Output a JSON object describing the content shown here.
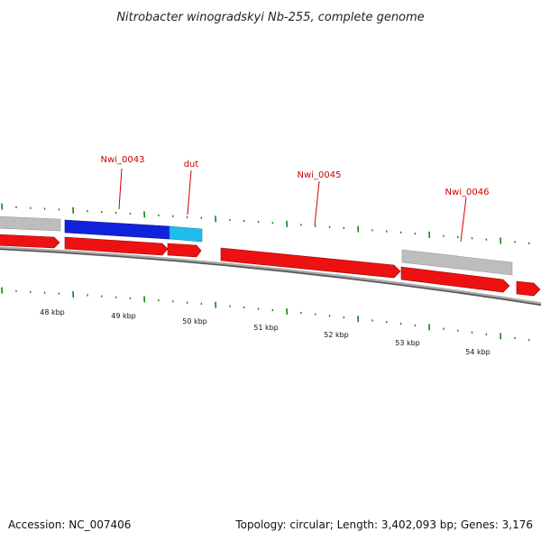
{
  "title": "Nitrobacter winogradskyi Nb-255, complete genome",
  "footer": {
    "accession": "Accession: NC_007406",
    "summary": "Topology: circular; Length: 3,402,093 bp; Genes: 3,176"
  },
  "colors": {
    "forward_gene": "#ee1111",
    "highlight_primary": "#1122dd",
    "highlight_secondary": "#22bbee",
    "non_coding": "#bbbbbb",
    "tick": "#118811",
    "label": "#cc0000",
    "backbone": "#777777"
  },
  "gene_labels": [
    {
      "text": "Nwi_0043"
    },
    {
      "text": "dut"
    },
    {
      "text": "Nwi_0045"
    },
    {
      "text": "Nwi_0046"
    }
  ],
  "scale_labels": [
    "48 kbp",
    "49 kbp",
    "50 kbp",
    "51 kbp",
    "52 kbp",
    "53 kbp",
    "54 kbp"
  ]
}
